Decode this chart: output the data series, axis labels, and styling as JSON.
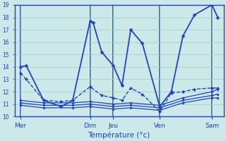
{
  "xlabel": "Température (°c)",
  "bg_color": "#cce8e8",
  "grid_color": "#99cccc",
  "line_color": "#2244bb",
  "ylim": [
    10,
    19
  ],
  "yticks": [
    10,
    11,
    12,
    13,
    14,
    15,
    16,
    17,
    18,
    19
  ],
  "xlim": [
    0,
    36
  ],
  "day_labels": [
    "Mer",
    "Dim",
    "Jeu",
    "Ven",
    "Sam"
  ],
  "day_positions": [
    1,
    13,
    17,
    25,
    34
  ],
  "lines": [
    {
      "x": [
        1,
        2,
        5,
        8,
        10,
        13,
        13.5,
        15,
        17,
        18.5,
        20,
        22,
        25,
        27,
        29,
        31,
        34,
        35
      ],
      "y": [
        14.0,
        14.1,
        11.3,
        10.8,
        11.3,
        17.7,
        17.6,
        15.2,
        14.1,
        12.5,
        17.0,
        15.9,
        10.8,
        12.0,
        16.5,
        18.2,
        19.0,
        18.0
      ],
      "style": "-",
      "marker": "D",
      "markersize": 2.5,
      "linewidth": 1.3
    },
    {
      "x": [
        1,
        2,
        5,
        8,
        10,
        13,
        15,
        17,
        18.5,
        20,
        22,
        25,
        27,
        29,
        31,
        34,
        35
      ],
      "y": [
        13.5,
        13.0,
        11.3,
        11.2,
        11.3,
        12.4,
        11.7,
        11.5,
        11.3,
        12.3,
        11.8,
        10.4,
        11.9,
        12.0,
        12.2,
        12.3,
        12.3
      ],
      "style": "--",
      "marker": "D",
      "markersize": 2.2,
      "linewidth": 1.0
    },
    {
      "x": [
        1,
        5,
        10,
        13,
        17,
        20,
        25,
        29,
        34,
        35
      ],
      "y": [
        11.3,
        11.1,
        11.1,
        11.2,
        11.0,
        11.1,
        10.9,
        11.5,
        12.0,
        12.2
      ],
      "style": "-",
      "marker": "D",
      "markersize": 1.8,
      "linewidth": 0.9
    },
    {
      "x": [
        1,
        5,
        10,
        13,
        17,
        20,
        25,
        29,
        34,
        35
      ],
      "y": [
        11.1,
        10.9,
        10.9,
        11.0,
        10.8,
        10.9,
        10.7,
        11.3,
        11.7,
        11.8
      ],
      "style": "-",
      "marker": "D",
      "markersize": 1.8,
      "linewidth": 0.9
    },
    {
      "x": [
        1,
        5,
        10,
        13,
        17,
        20,
        25,
        29,
        34,
        35
      ],
      "y": [
        10.9,
        10.7,
        10.7,
        10.8,
        10.6,
        10.7,
        10.5,
        11.1,
        11.5,
        11.5
      ],
      "style": "-",
      "marker": "D",
      "markersize": 1.8,
      "linewidth": 0.9
    }
  ]
}
